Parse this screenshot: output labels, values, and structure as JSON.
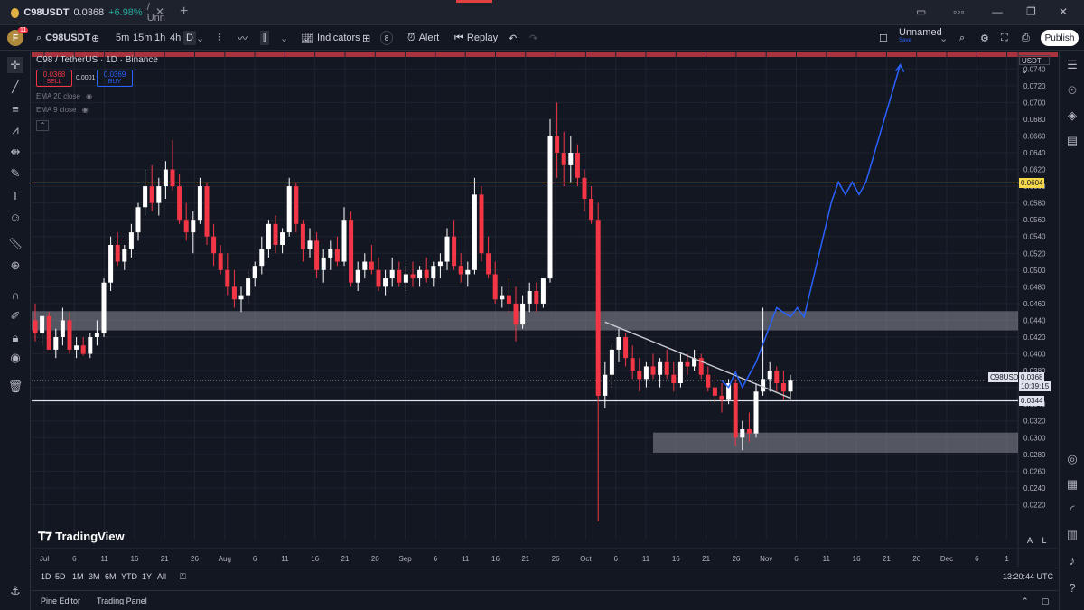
{
  "tab": {
    "symbol": "C98USDT",
    "price": "0.0368",
    "change": "+6.98%",
    "name": "/ Unn"
  },
  "toolbar": {
    "symbol": "C98USDT",
    "intervals": [
      "5m",
      "15m",
      "1h",
      "4h",
      "D"
    ],
    "indicators": "Indicators",
    "alert": "Alert",
    "replay": "Replay",
    "layout_name": "Unnamed",
    "layout_sub": "Save",
    "publish": "Publish",
    "avatar": "F",
    "notif": "11"
  },
  "legend": {
    "title": "C98 / TetherUS · 1D · Binance",
    "sell_price": "0.0368",
    "sell_label": "SELL",
    "spread": "0.0001",
    "buy_price": "0.0369",
    "buy_label": "BUY",
    "ema20": "EMA 20 close",
    "ema9": "EMA 9 close"
  },
  "watermark": "TradingView",
  "currency": "USDT",
  "labels": {
    "yellow": "0.0604",
    "white": "0.0344",
    "current_name": "C98USDT",
    "current_price": "0.0368",
    "countdown": "10:39:15"
  },
  "auto": {
    "a": "A",
    "l": "L"
  },
  "timeframes": [
    "1D",
    "5D",
    "1M",
    "3M",
    "6M",
    "YTD",
    "1Y",
    "All"
  ],
  "clock": "13:20:44 UTC",
  "bottom": {
    "pine": "Pine Editor",
    "trading": "Trading Panel"
  },
  "colors": {
    "up": "#ffffff",
    "down": "#f23645",
    "bg": "#131722",
    "projection": "#2962ff",
    "level_yellow": "#f5d94a"
  },
  "chart_data": {
    "type": "candlestick",
    "title": "C98 / TetherUS · 1D · Binance",
    "ylim": [
      0.02,
      0.075
    ],
    "yticks": [
      0.022,
      0.024,
      0.026,
      0.028,
      0.03,
      0.032,
      0.034,
      0.036,
      0.038,
      0.04,
      0.042,
      0.044,
      0.046,
      0.048,
      0.05,
      0.052,
      0.054,
      0.056,
      0.058,
      0.06,
      0.062,
      0.064,
      0.066,
      0.068,
      0.07,
      0.072,
      0.074
    ],
    "xticks": [
      "Jul",
      "6",
      "11",
      "16",
      "21",
      "26",
      "Aug",
      "6",
      "11",
      "16",
      "21",
      "26",
      "Sep",
      "6",
      "11",
      "16",
      "21",
      "26",
      "Oct",
      "6",
      "11",
      "16",
      "21",
      "26",
      "Nov",
      "6",
      "11",
      "16",
      "21",
      "26",
      "Dec",
      "6",
      "1"
    ],
    "candles": [
      [
        0.044,
        0.046,
        0.0415,
        0.0425
      ],
      [
        0.0425,
        0.0445,
        0.041,
        0.0445
      ],
      [
        0.0445,
        0.045,
        0.041,
        0.0405
      ],
      [
        0.0405,
        0.043,
        0.0395,
        0.042
      ],
      [
        0.042,
        0.0455,
        0.041,
        0.044
      ],
      [
        0.044,
        0.045,
        0.04,
        0.0405
      ],
      [
        0.0405,
        0.042,
        0.0395,
        0.041
      ],
      [
        0.041,
        0.042,
        0.0398,
        0.04
      ],
      [
        0.04,
        0.0425,
        0.0395,
        0.042
      ],
      [
        0.042,
        0.044,
        0.041,
        0.0425
      ],
      [
        0.0425,
        0.049,
        0.042,
        0.0485
      ],
      [
        0.0485,
        0.054,
        0.0475,
        0.053
      ],
      [
        0.053,
        0.0545,
        0.0505,
        0.051
      ],
      [
        0.051,
        0.053,
        0.05,
        0.0525
      ],
      [
        0.0525,
        0.0555,
        0.0515,
        0.0545
      ],
      [
        0.0545,
        0.058,
        0.0535,
        0.0575
      ],
      [
        0.0575,
        0.062,
        0.0565,
        0.06
      ],
      [
        0.06,
        0.0625,
        0.057,
        0.058
      ],
      [
        0.058,
        0.061,
        0.0565,
        0.06
      ],
      [
        0.06,
        0.063,
        0.0585,
        0.062
      ],
      [
        0.062,
        0.0655,
        0.0595,
        0.06
      ],
      [
        0.06,
        0.0615,
        0.0555,
        0.056
      ],
      [
        0.056,
        0.058,
        0.0535,
        0.0545
      ],
      [
        0.0545,
        0.057,
        0.052,
        0.056
      ],
      [
        0.056,
        0.061,
        0.0555,
        0.06
      ],
      [
        0.06,
        0.0605,
        0.053,
        0.054
      ],
      [
        0.054,
        0.0555,
        0.0505,
        0.052
      ],
      [
        0.052,
        0.053,
        0.0495,
        0.05
      ],
      [
        0.05,
        0.052,
        0.047,
        0.048
      ],
      [
        0.048,
        0.05,
        0.0455,
        0.0465
      ],
      [
        0.0465,
        0.048,
        0.045,
        0.047
      ],
      [
        0.047,
        0.05,
        0.046,
        0.049
      ],
      [
        0.049,
        0.051,
        0.048,
        0.0505
      ],
      [
        0.0505,
        0.054,
        0.0495,
        0.0525
      ],
      [
        0.0525,
        0.056,
        0.0515,
        0.0555
      ],
      [
        0.0555,
        0.0565,
        0.052,
        0.053
      ],
      [
        0.053,
        0.055,
        0.052,
        0.0545
      ],
      [
        0.0545,
        0.061,
        0.054,
        0.06
      ],
      [
        0.06,
        0.0605,
        0.0545,
        0.0555
      ],
      [
        0.0555,
        0.056,
        0.051,
        0.0525
      ],
      [
        0.0525,
        0.055,
        0.0515,
        0.0535
      ],
      [
        0.0535,
        0.0545,
        0.049,
        0.05
      ],
      [
        0.05,
        0.0525,
        0.0485,
        0.0515
      ],
      [
        0.0515,
        0.0535,
        0.05,
        0.0525
      ],
      [
        0.0525,
        0.054,
        0.0505,
        0.051
      ],
      [
        0.051,
        0.0575,
        0.0505,
        0.056
      ],
      [
        0.056,
        0.057,
        0.048,
        0.0485
      ],
      [
        0.0485,
        0.051,
        0.0475,
        0.05
      ],
      [
        0.05,
        0.052,
        0.049,
        0.051
      ],
      [
        0.051,
        0.053,
        0.0495,
        0.05
      ],
      [
        0.05,
        0.0515,
        0.0475,
        0.048
      ],
      [
        0.048,
        0.05,
        0.047,
        0.049
      ],
      [
        0.049,
        0.0515,
        0.048,
        0.05
      ],
      [
        0.05,
        0.051,
        0.048,
        0.0485
      ],
      [
        0.0485,
        0.0505,
        0.0475,
        0.0495
      ],
      [
        0.0495,
        0.051,
        0.048,
        0.049
      ],
      [
        0.049,
        0.0505,
        0.048,
        0.05
      ],
      [
        0.05,
        0.0515,
        0.0485,
        0.049
      ],
      [
        0.049,
        0.051,
        0.048,
        0.0505
      ],
      [
        0.0505,
        0.052,
        0.049,
        0.051
      ],
      [
        0.051,
        0.055,
        0.05,
        0.054
      ],
      [
        0.054,
        0.056,
        0.05,
        0.0505
      ],
      [
        0.0505,
        0.052,
        0.0485,
        0.0495
      ],
      [
        0.0495,
        0.051,
        0.048,
        0.05
      ],
      [
        0.05,
        0.061,
        0.0495,
        0.059
      ],
      [
        0.059,
        0.06,
        0.051,
        0.052
      ],
      [
        0.052,
        0.054,
        0.049,
        0.0495
      ],
      [
        0.0495,
        0.051,
        0.046,
        0.0465
      ],
      [
        0.0465,
        0.048,
        0.0455,
        0.047
      ],
      [
        0.047,
        0.049,
        0.045,
        0.046
      ],
      [
        0.046,
        0.048,
        0.0415,
        0.0435
      ],
      [
        0.0435,
        0.047,
        0.043,
        0.046
      ],
      [
        0.046,
        0.0485,
        0.045,
        0.0475
      ],
      [
        0.0475,
        0.0485,
        0.045,
        0.046
      ],
      [
        0.046,
        0.049,
        0.0455,
        0.049
      ],
      [
        0.049,
        0.068,
        0.0485,
        0.066
      ],
      [
        0.066,
        0.07,
        0.061,
        0.064
      ],
      [
        0.064,
        0.0665,
        0.06,
        0.0625
      ],
      [
        0.0625,
        0.066,
        0.0605,
        0.064
      ],
      [
        0.064,
        0.065,
        0.06,
        0.061
      ],
      [
        0.061,
        0.062,
        0.057,
        0.0585
      ],
      [
        0.0585,
        0.06,
        0.0555,
        0.056
      ],
      [
        0.056,
        0.058,
        0.02,
        0.035
      ],
      [
        0.035,
        0.039,
        0.0335,
        0.0375
      ],
      [
        0.0375,
        0.041,
        0.036,
        0.0405
      ],
      [
        0.0405,
        0.043,
        0.039,
        0.042
      ],
      [
        0.042,
        0.0425,
        0.0385,
        0.0395
      ],
      [
        0.0395,
        0.041,
        0.037,
        0.038
      ],
      [
        0.038,
        0.0395,
        0.0355,
        0.037
      ],
      [
        0.037,
        0.039,
        0.036,
        0.0385
      ],
      [
        0.0385,
        0.04,
        0.037,
        0.0375
      ],
      [
        0.0375,
        0.0395,
        0.036,
        0.039
      ],
      [
        0.039,
        0.0405,
        0.037,
        0.0375
      ],
      [
        0.0375,
        0.039,
        0.0355,
        0.0365
      ],
      [
        0.0365,
        0.04,
        0.036,
        0.039
      ],
      [
        0.039,
        0.04,
        0.0375,
        0.0385
      ],
      [
        0.0385,
        0.0405,
        0.038,
        0.0395
      ],
      [
        0.0395,
        0.04,
        0.037,
        0.0375
      ],
      [
        0.0375,
        0.0385,
        0.0355,
        0.036
      ],
      [
        0.036,
        0.0375,
        0.034,
        0.035
      ],
      [
        0.035,
        0.0365,
        0.033,
        0.0345
      ],
      [
        0.0345,
        0.037,
        0.034,
        0.0365
      ],
      [
        0.0365,
        0.037,
        0.029,
        0.03
      ],
      [
        0.03,
        0.032,
        0.0285,
        0.031
      ],
      [
        0.031,
        0.033,
        0.0295,
        0.0305
      ],
      [
        0.0305,
        0.0365,
        0.03,
        0.0355
      ],
      [
        0.0355,
        0.0455,
        0.035,
        0.037
      ],
      [
        0.037,
        0.039,
        0.0355,
        0.038
      ],
      [
        0.038,
        0.0385,
        0.0355,
        0.0365
      ],
      [
        0.0365,
        0.038,
        0.0345,
        0.0355
      ],
      [
        0.0355,
        0.0375,
        0.0345,
        0.0368
      ]
    ],
    "levels": {
      "yellow": 0.0604,
      "white": 0.0344
    },
    "zones": [
      {
        "from": 0.0428,
        "to": 0.0451
      },
      {
        "from": 0.0282,
        "to": 0.0306
      }
    ],
    "trendline": [
      [
        83,
        0.0438
      ],
      [
        104,
        0.0347
      ]
    ],
    "projection": [
      [
        100,
        0.0368
      ],
      [
        101,
        0.036
      ],
      [
        102,
        0.0378
      ],
      [
        103,
        0.036
      ],
      [
        105,
        0.039
      ],
      [
        108,
        0.0455
      ],
      [
        110,
        0.0444
      ],
      [
        111,
        0.0455
      ],
      [
        112,
        0.0444
      ],
      [
        116,
        0.0582
      ],
      [
        117,
        0.0605
      ],
      [
        118,
        0.059
      ],
      [
        119,
        0.0605
      ],
      [
        120,
        0.059
      ],
      [
        121,
        0.0605
      ],
      [
        126,
        0.0745
      ]
    ],
    "current_line": 0.0368
  }
}
